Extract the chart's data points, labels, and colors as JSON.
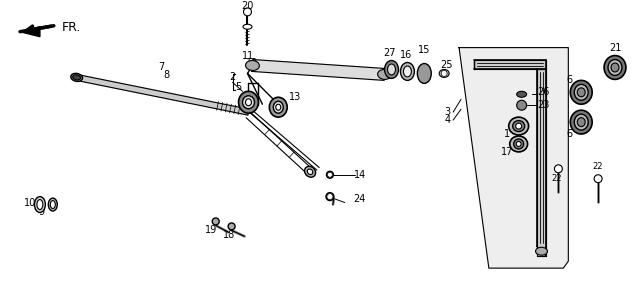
{
  "bg_color": "#ffffff",
  "fig_width": 6.4,
  "fig_height": 2.86,
  "dpi": 100,
  "line_color": "#000000",
  "text_color": "#000000",
  "label_fontsize": 7.0
}
